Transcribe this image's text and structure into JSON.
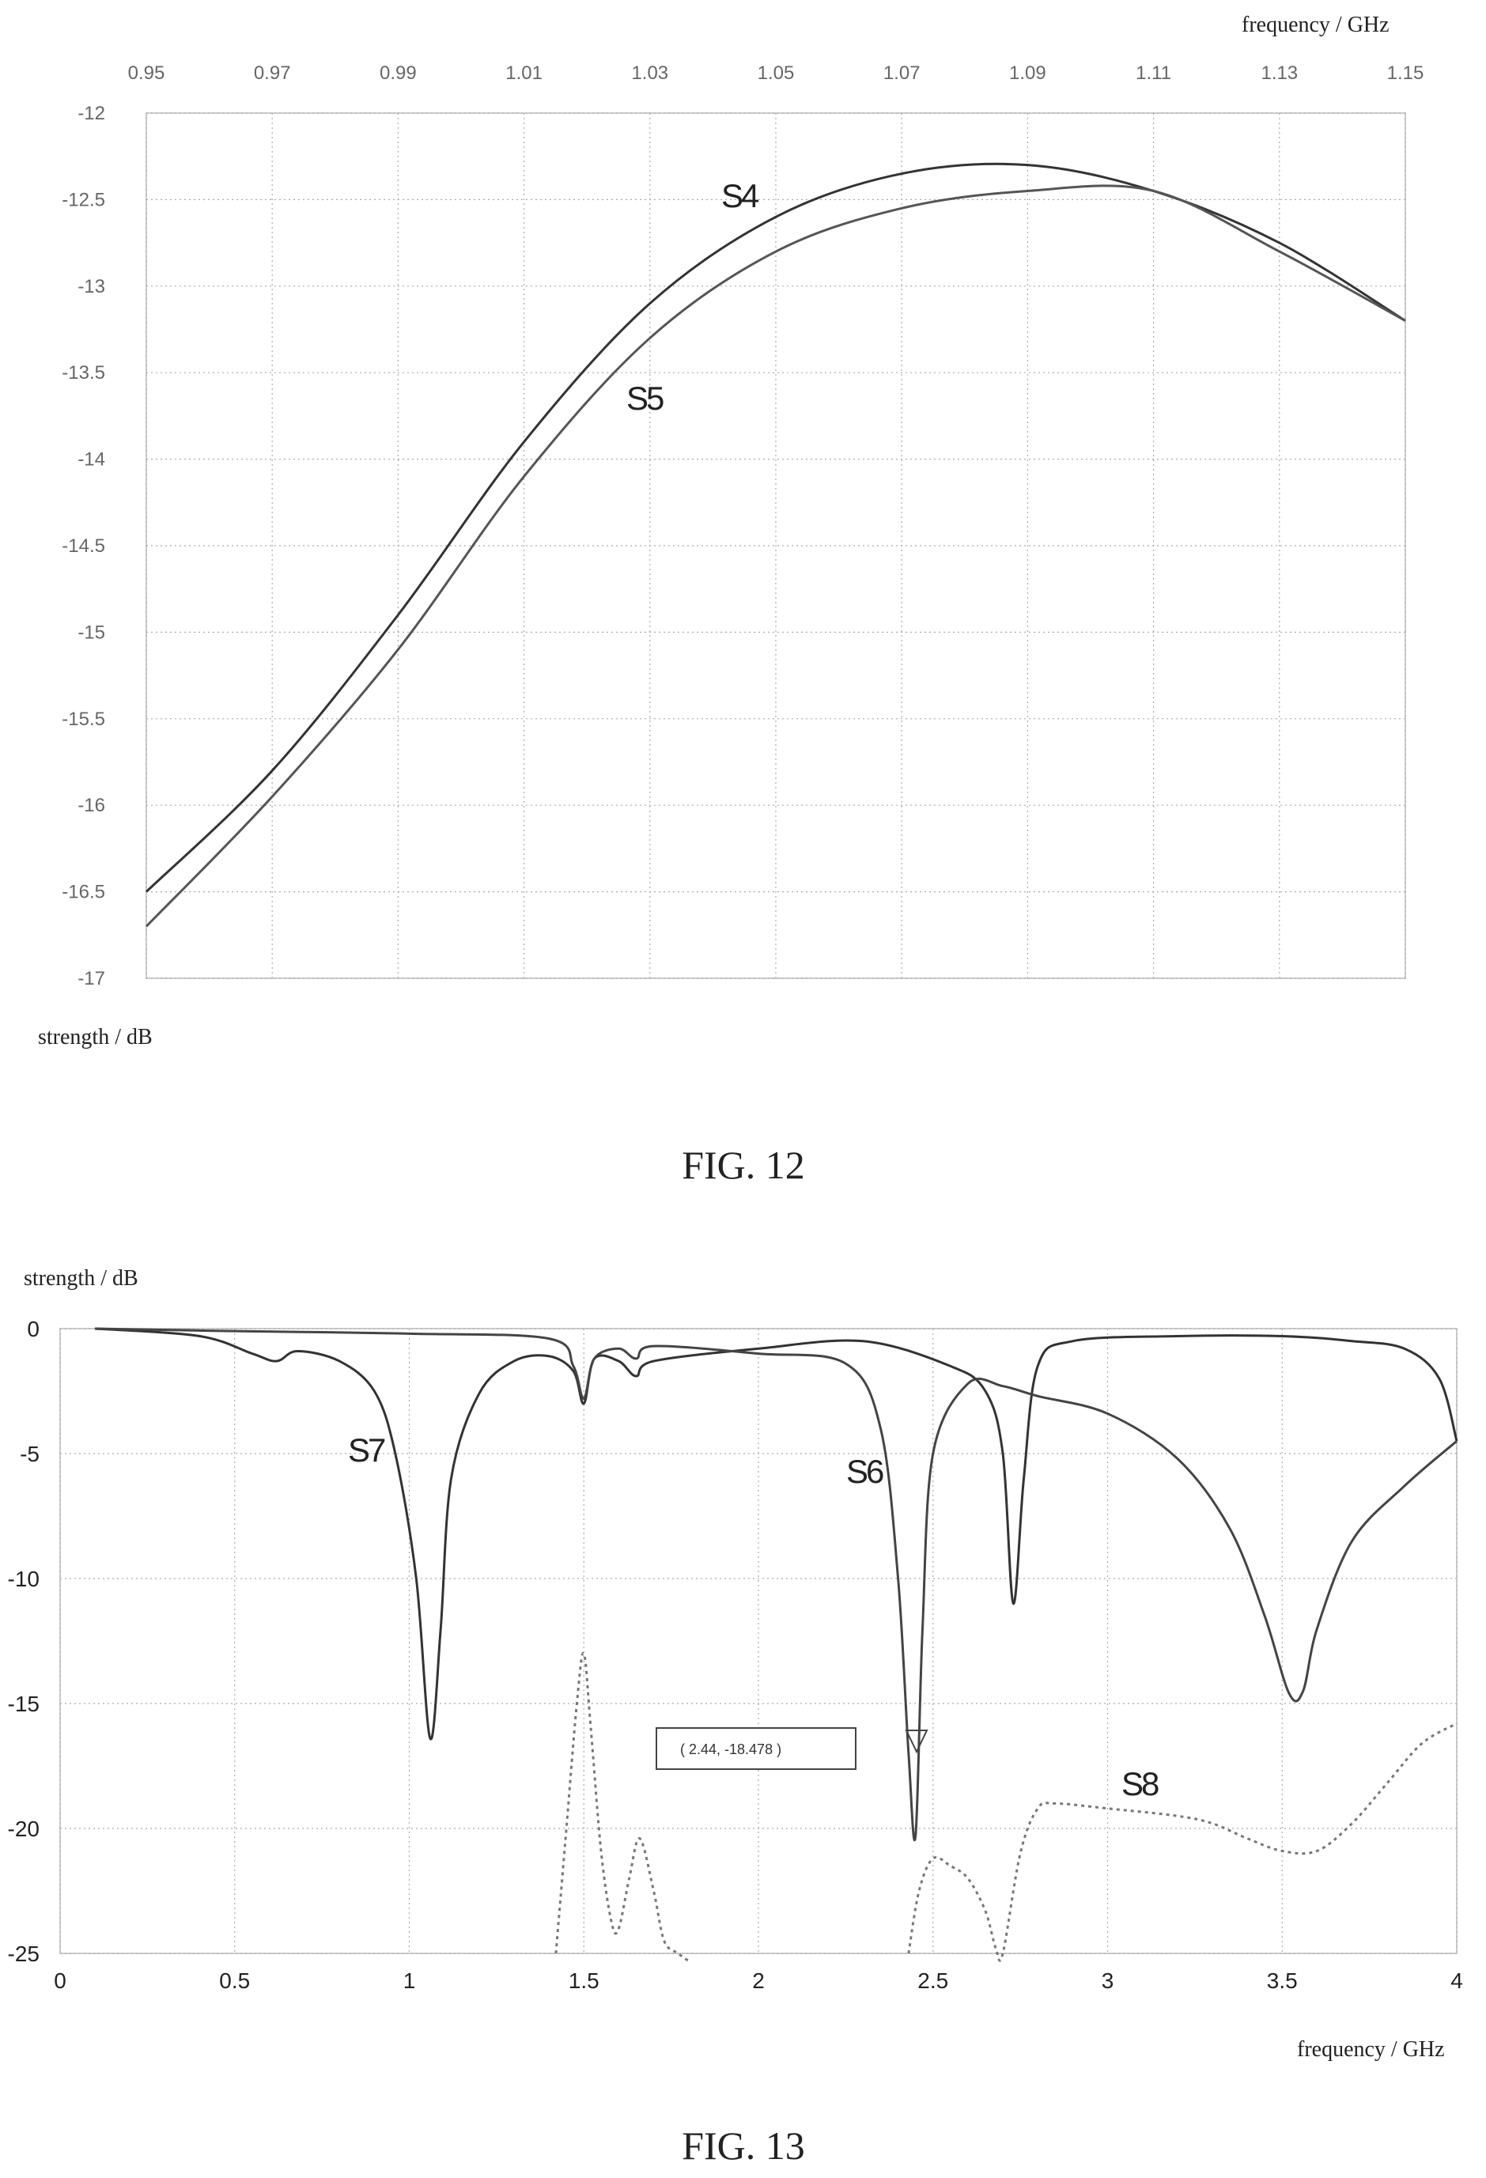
{
  "figures": [
    {
      "caption": "FIG. 12"
    },
    {
      "caption": "FIG. 13"
    }
  ],
  "chart_data": [
    {
      "type": "line",
      "title": "",
      "xlabel": "frequency / GHz",
      "ylabel": "strength / dB",
      "xlim": [
        0.95,
        1.15
      ],
      "ylim": [
        -17,
        -12
      ],
      "x_axis_position": "top",
      "grid": true,
      "xticks": [
        "0.95",
        "0.97",
        "0.99",
        "1.01",
        "1.03",
        "1.05",
        "1.07",
        "1.09",
        "1.11",
        "1.13",
        "1.15"
      ],
      "yticks": [
        "-12",
        "-12.5",
        "-13",
        "-13.5",
        "-14",
        "-14.5",
        "-15",
        "-15.5",
        "-16",
        "-16.5",
        "-17"
      ],
      "series": [
        {
          "name": "S4",
          "color": "#333333",
          "x": [
            0.95,
            0.97,
            0.99,
            1.01,
            1.03,
            1.05,
            1.07,
            1.09,
            1.11,
            1.13,
            1.15
          ],
          "y": [
            -16.5,
            -15.8,
            -14.9,
            -13.9,
            -13.1,
            -12.6,
            -12.35,
            -12.3,
            -12.45,
            -12.75,
            -13.2
          ]
        },
        {
          "name": "S5",
          "color": "#555555",
          "x": [
            0.95,
            0.97,
            0.99,
            1.01,
            1.03,
            1.05,
            1.07,
            1.09,
            1.11,
            1.13,
            1.15
          ],
          "y": [
            -16.7,
            -15.95,
            -15.1,
            -14.1,
            -13.3,
            -12.8,
            -12.55,
            -12.45,
            -12.45,
            -12.8,
            -13.2
          ]
        }
      ]
    },
    {
      "type": "line",
      "title": "",
      "xlabel": "frequency / GHz",
      "ylabel": "strength / dB",
      "xlim": [
        0,
        4
      ],
      "ylim": [
        -25,
        0
      ],
      "grid": true,
      "xticks": [
        "0",
        "0.5",
        "1",
        "1.5",
        "2",
        "2.5",
        "3",
        "3.5",
        "4"
      ],
      "yticks": [
        "0",
        "-5",
        "-10",
        "-15",
        "-20",
        "-25"
      ],
      "annotation": {
        "x": 2.44,
        "y": -18.478,
        "text": "( 2.44, -18.478 )"
      },
      "series": [
        {
          "name": "S7",
          "color": "#333333",
          "dash": "",
          "x": [
            0.1,
            0.4,
            0.55,
            0.62,
            0.68,
            0.8,
            0.9,
            0.96,
            1.02,
            1.06,
            1.09,
            1.12,
            1.2,
            1.3,
            1.4,
            1.47,
            1.5,
            1.53,
            1.6,
            1.65,
            1.7,
            2.0,
            2.3,
            2.55,
            2.65,
            2.7,
            2.73,
            2.76,
            2.8,
            2.9,
            3.2,
            3.5,
            3.7,
            3.85,
            3.95,
            4.0
          ],
          "y": [
            0,
            -0.3,
            -1,
            -1.3,
            -0.9,
            -1.3,
            -2.5,
            -5,
            -10,
            -16.4,
            -12,
            -6,
            -2.6,
            -1.3,
            -1.1,
            -1.7,
            -3.0,
            -1.2,
            -1.3,
            -1.9,
            -1.3,
            -0.8,
            -0.5,
            -1.5,
            -2.5,
            -5,
            -11,
            -6,
            -1.5,
            -0.5,
            -0.3,
            -0.3,
            -0.5,
            -0.8,
            -2,
            -4.5
          ]
        },
        {
          "name": "S6",
          "color": "#444444",
          "dash": "",
          "x": [
            0.1,
            0.5,
            1.0,
            1.4,
            1.47,
            1.5,
            1.53,
            1.6,
            1.65,
            1.7,
            2.0,
            2.25,
            2.35,
            2.4,
            2.43,
            2.45,
            2.47,
            2.5,
            2.6,
            2.7,
            2.8,
            3.0,
            3.2,
            3.35,
            3.45,
            3.52,
            3.56,
            3.6,
            3.7,
            3.85,
            4.0
          ],
          "y": [
            0,
            -0.1,
            -0.2,
            -0.4,
            -1.5,
            -2.8,
            -1.2,
            -0.8,
            -1.2,
            -0.7,
            -1.0,
            -1.4,
            -4,
            -10,
            -17,
            -20.3,
            -12,
            -5,
            -2.2,
            -2.3,
            -2.7,
            -3.4,
            -5.2,
            -8,
            -11.5,
            -14.6,
            -14.5,
            -12,
            -8.5,
            -6.3,
            -4.5
          ]
        },
        {
          "name": "S8",
          "color": "#777777",
          "dash": "4,5",
          "x": [
            1.42,
            1.45,
            1.48,
            1.5,
            1.52,
            1.55,
            1.58,
            1.6,
            1.63,
            1.66,
            1.7,
            1.73,
            1.77,
            1.8
          ],
          "y": [
            -25,
            -20,
            -15,
            -13,
            -16,
            -21,
            -23.8,
            -24,
            -22,
            -20.4,
            -22.5,
            -24.5,
            -25,
            -25.3
          ],
          "x2": [
            2.43,
            2.46,
            2.5,
            2.55,
            2.6,
            2.65,
            2.68,
            2.7,
            2.75,
            2.8,
            2.85,
            3.0,
            3.2,
            3.3,
            3.4,
            3.5,
            3.6,
            3.7,
            3.8,
            3.9,
            4.0
          ],
          "y2": [
            -25,
            -22.5,
            -21.2,
            -21.5,
            -22,
            -23.3,
            -24.8,
            -25,
            -21,
            -19.2,
            -19.0,
            -19.2,
            -19.5,
            -19.8,
            -20.4,
            -20.9,
            -20.9,
            -19.8,
            -18.2,
            -16.6,
            -15.8
          ]
        }
      ],
      "labels": [
        "S7",
        "S6",
        "S8"
      ]
    }
  ]
}
